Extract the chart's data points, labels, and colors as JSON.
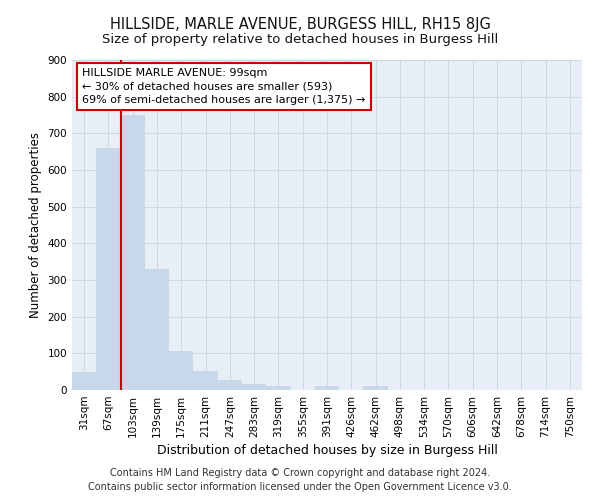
{
  "title": "HILLSIDE, MARLE AVENUE, BURGESS HILL, RH15 8JG",
  "subtitle": "Size of property relative to detached houses in Burgess Hill",
  "xlabel": "Distribution of detached houses by size in Burgess Hill",
  "ylabel": "Number of detached properties",
  "footer_line1": "Contains HM Land Registry data © Crown copyright and database right 2024.",
  "footer_line2": "Contains public sector information licensed under the Open Government Licence v3.0.",
  "categories": [
    "31sqm",
    "67sqm",
    "103sqm",
    "139sqm",
    "175sqm",
    "211sqm",
    "247sqm",
    "283sqm",
    "319sqm",
    "355sqm",
    "391sqm",
    "426sqm",
    "462sqm",
    "498sqm",
    "534sqm",
    "570sqm",
    "606sqm",
    "642sqm",
    "678sqm",
    "714sqm",
    "750sqm"
  ],
  "values": [
    50,
    660,
    750,
    330,
    107,
    52,
    27,
    16,
    10,
    0,
    10,
    0,
    10,
    0,
    0,
    0,
    0,
    0,
    0,
    0,
    0
  ],
  "bar_color": "#c8d8ea",
  "bar_edge_color": "#c8d8ea",
  "grid_color": "#ccd8e4",
  "background_color": "#e8eef5",
  "vline_color": "#cc0000",
  "annotation_text": "HILLSIDE MARLE AVENUE: 99sqm\n← 30% of detached houses are smaller (593)\n69% of semi-detached houses are larger (1,375) →",
  "annotation_box_color": "#cc0000",
  "ylim": [
    0,
    900
  ],
  "yticks": [
    0,
    100,
    200,
    300,
    400,
    500,
    600,
    700,
    800,
    900
  ],
  "title_fontsize": 10.5,
  "subtitle_fontsize": 9.5,
  "xlabel_fontsize": 9,
  "ylabel_fontsize": 8.5,
  "tick_fontsize": 7.5,
  "annotation_fontsize": 8,
  "footer_fontsize": 7
}
